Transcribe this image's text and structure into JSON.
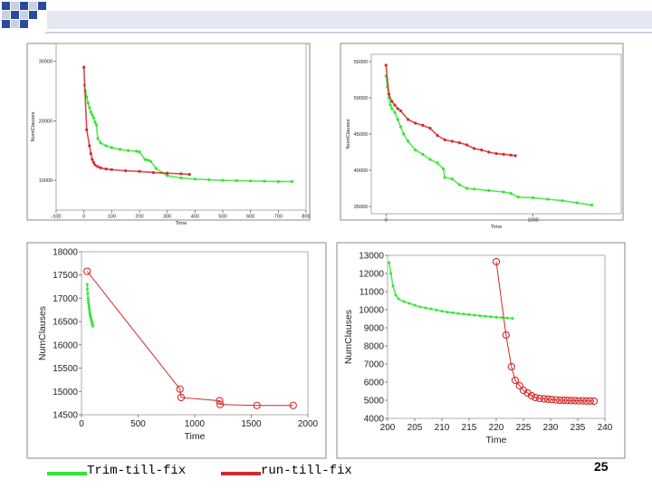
{
  "slide": {
    "page_number": "25",
    "colors": {
      "green": "#33e633",
      "red": "#d42a2a",
      "deco_blue": "#2a4a9e",
      "deco_light": "#c8d0e6"
    }
  },
  "legend": [
    {
      "label": "Trim-till-fix",
      "color": "#33e633"
    },
    {
      "label": "run-till-fix",
      "color": "#d42a2a"
    }
  ],
  "chart_data": [
    {
      "type": "scatter",
      "xlabel": "Time",
      "ylabel": "NumClauses",
      "xlim": [
        -100,
        800
      ],
      "ylim": [
        5000,
        33000
      ],
      "xticks": [
        -100,
        0,
        100,
        200,
        300,
        400,
        500,
        600,
        700,
        800
      ],
      "yticks": [
        10000,
        20000,
        30000
      ],
      "xtick_labels": [
        "-100",
        "0",
        "100",
        "200",
        "300",
        "400",
        "500",
        "600",
        "700",
        "800"
      ],
      "ytick_labels": [
        "10000",
        "20000",
        "30000"
      ],
      "series": [
        {
          "name": "Trim-till-fix",
          "color": "#33e633",
          "x": [
            2,
            5,
            10,
            15,
            20,
            25,
            30,
            35,
            40,
            45,
            50,
            60,
            80,
            100,
            130,
            160,
            190,
            200,
            220,
            230,
            240,
            260,
            280,
            300,
            350,
            400,
            450,
            500,
            550,
            600,
            650,
            700,
            750
          ],
          "y": [
            26000,
            25000,
            24000,
            23000,
            22200,
            21500,
            21000,
            20500,
            19800,
            19300,
            17000,
            16300,
            15800,
            15500,
            15200,
            15000,
            14900,
            14800,
            13500,
            13400,
            13200,
            12000,
            11300,
            10800,
            10400,
            10200,
            10100,
            10000,
            9950,
            9900,
            9850,
            9800,
            9800
          ]
        },
        {
          "name": "run-till-fix",
          "color": "#d42a2a",
          "x": [
            0,
            10,
            20,
            25,
            30,
            35,
            40,
            50,
            60,
            80,
            100,
            150,
            200,
            250,
            300,
            350,
            380
          ],
          "y": [
            29000,
            18500,
            15800,
            14500,
            13500,
            13000,
            12600,
            12300,
            12100,
            11900,
            11800,
            11600,
            11500,
            11300,
            11200,
            11100,
            11000
          ]
        }
      ]
    },
    {
      "type": "scatter",
      "xlabel": "Time",
      "ylabel": "NumClauses",
      "xlim": [
        -100,
        1600
      ],
      "ylim": [
        34000,
        56000
      ],
      "xticks": [
        0,
        1000
      ],
      "yticks": [
        35000,
        40000,
        45000,
        50000,
        55000
      ],
      "xtick_labels": [
        "0",
        "1000"
      ],
      "ytick_labels": [
        "35000",
        "40000",
        "45000",
        "50000",
        "55000"
      ],
      "series": [
        {
          "name": "Trim-till-fix",
          "color": "#33e633",
          "x": [
            0,
            10,
            20,
            30,
            40,
            60,
            80,
            100,
            120,
            150,
            200,
            250,
            300,
            350,
            390,
            400,
            450,
            500,
            550,
            600,
            700,
            800,
            850,
            900,
            1000,
            1100,
            1200,
            1300,
            1400
          ],
          "y": [
            53000,
            51500,
            50000,
            49000,
            48500,
            48000,
            47000,
            46000,
            45000,
            44000,
            42800,
            42200,
            41500,
            41000,
            40200,
            39000,
            38800,
            38000,
            37500,
            37400,
            37200,
            37000,
            36800,
            36300,
            36200,
            36000,
            35800,
            35500,
            35200
          ]
        },
        {
          "name": "run-till-fix",
          "color": "#d42a2a",
          "x": [
            0,
            20,
            40,
            60,
            80,
            100,
            150,
            200,
            250,
            300,
            350,
            400,
            450,
            500,
            550,
            600,
            650,
            700,
            750,
            800,
            850,
            880
          ],
          "y": [
            54500,
            50500,
            49500,
            49000,
            48500,
            48200,
            47000,
            46500,
            46200,
            45800,
            44800,
            44200,
            44000,
            43800,
            43500,
            43000,
            42800,
            42500,
            42300,
            42200,
            42100,
            42000
          ]
        }
      ]
    },
    {
      "type": "line",
      "xlabel": "Time",
      "ylabel": "NumClauses",
      "xlim": [
        0,
        2000
      ],
      "ylim": [
        14500,
        18000
      ],
      "xticks": [
        0,
        500,
        1000,
        1500,
        2000
      ],
      "yticks": [
        14500,
        15000,
        15500,
        16000,
        16500,
        17000,
        17500,
        18000
      ],
      "xtick_labels": [
        "0",
        "500",
        "1000",
        "1500",
        "2000"
      ],
      "ytick_labels": [
        "14500",
        "15000",
        "15500",
        "16000",
        "16500",
        "17000",
        "17500",
        "18000"
      ],
      "series": [
        {
          "name": "Trim-till-fix",
          "color": "#33e633",
          "style": "dots",
          "x": [
            50,
            52,
            55,
            58,
            60,
            62,
            65,
            68,
            70,
            72,
            75,
            78,
            80,
            82,
            85,
            88,
            90,
            92,
            95,
            98,
            100
          ],
          "y": [
            17300,
            17200,
            17100,
            17000,
            16950,
            16900,
            16850,
            16800,
            16750,
            16700,
            16650,
            16620,
            16600,
            16580,
            16550,
            16520,
            16500,
            16480,
            16450,
            16430,
            16400
          ]
        },
        {
          "name": "run-till-fix",
          "color": "#d42a2a",
          "style": "line-circles",
          "x": [
            50,
            870,
            880,
            1220,
            1225,
            1550,
            1870
          ],
          "y": [
            17580,
            15050,
            14870,
            14800,
            14720,
            14700,
            14700
          ]
        }
      ]
    },
    {
      "type": "line",
      "xlabel": "Time",
      "ylabel": "NumClauses",
      "xlim": [
        200,
        240
      ],
      "ylim": [
        4000,
        13000
      ],
      "xticks": [
        200,
        205,
        210,
        215,
        220,
        225,
        230,
        235,
        240
      ],
      "yticks": [
        4000,
        5000,
        6000,
        7000,
        8000,
        9000,
        10000,
        11000,
        12000,
        13000
      ],
      "xtick_labels": [
        "200",
        "205",
        "210",
        "215",
        "220",
        "225",
        "230",
        "235",
        "240"
      ],
      "ytick_labels": [
        "4000",
        "5000",
        "6000",
        "7000",
        "8000",
        "9000",
        "10000",
        "11000",
        "12000",
        "13000"
      ],
      "series": [
        {
          "name": "Trim-till-fix",
          "color": "#33e633",
          "style": "dots",
          "x": [
            200.3,
            200.6,
            201,
            201.5,
            202,
            203,
            204,
            205,
            206,
            207,
            208,
            209,
            210,
            211,
            212,
            213,
            214,
            215,
            216,
            217,
            218,
            219,
            220,
            221,
            222,
            223
          ],
          "y": [
            12600,
            12000,
            11300,
            10800,
            10600,
            10450,
            10350,
            10250,
            10150,
            10100,
            10050,
            9980,
            9920,
            9870,
            9830,
            9790,
            9760,
            9730,
            9700,
            9670,
            9640,
            9610,
            9580,
            9560,
            9540,
            9520
          ]
        },
        {
          "name": "run-till-fix",
          "color": "#d42a2a",
          "style": "line-circles",
          "x": [
            220,
            221.8,
            222.8,
            223.5,
            224.3,
            225,
            225.8,
            226.5,
            227.2,
            228,
            228.8,
            229.5,
            230.2,
            231,
            231.7,
            232.4,
            233.1,
            233.8,
            234.5,
            235.2,
            235.9,
            236.6,
            237.3,
            238
          ],
          "y": [
            12650,
            8600,
            6850,
            6100,
            5800,
            5550,
            5400,
            5250,
            5150,
            5100,
            5080,
            5060,
            5040,
            5020,
            5000,
            5000,
            4990,
            4980,
            4980,
            4970,
            4970,
            4960,
            4960,
            4950
          ]
        }
      ]
    }
  ]
}
